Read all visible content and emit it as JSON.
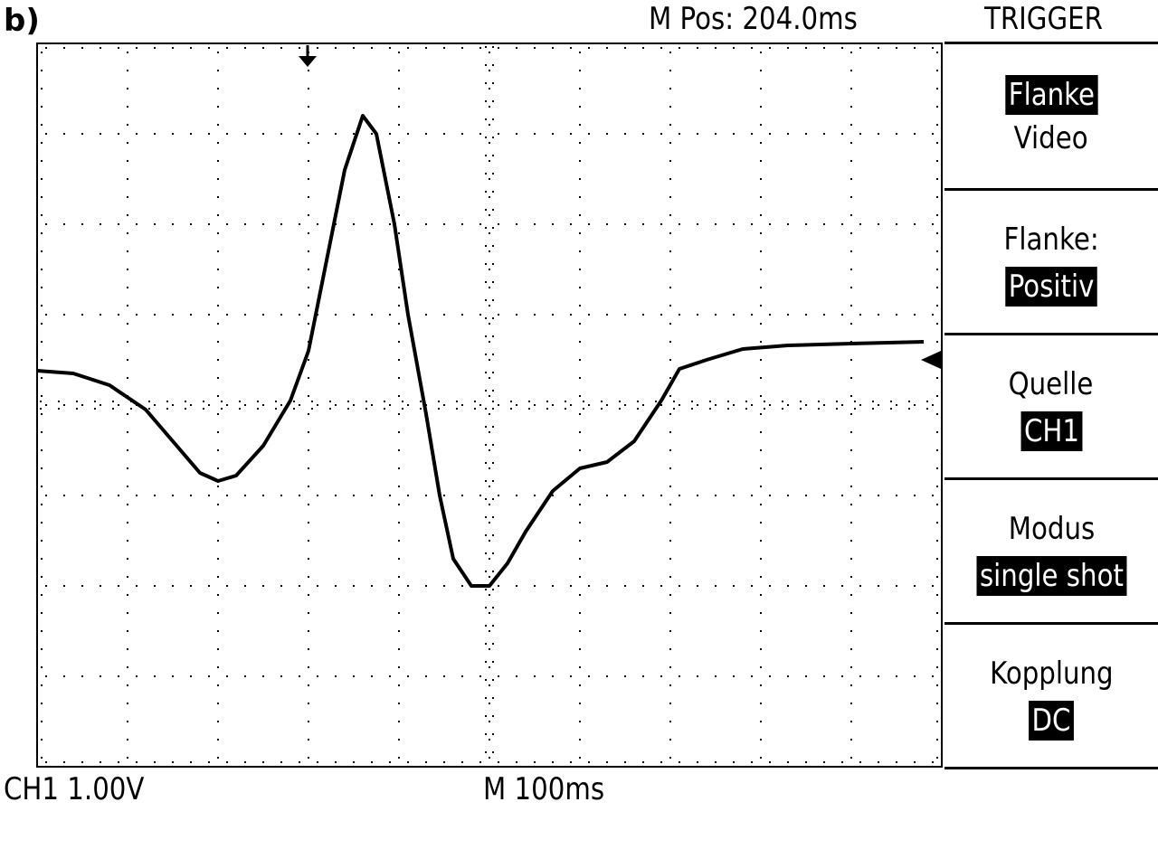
{
  "header": {
    "panel_label": "b)",
    "m_pos": "M Pos: 204.0ms",
    "menu_title": "TRIGGER"
  },
  "footer": {
    "ch1_scale": "CH1 1.00V",
    "timebase": "M 100ms"
  },
  "menu": [
    {
      "label": "Flanke",
      "value": "Video",
      "highlight": "label"
    },
    {
      "label": "Flanke:",
      "value": "Positiv",
      "highlight": "value"
    },
    {
      "label": "Quelle",
      "value": "CH1",
      "highlight": "value"
    },
    {
      "label": "Modus",
      "value": "single shot",
      "highlight": "value"
    },
    {
      "label": "Kopplung",
      "value": "DC",
      "highlight": "value"
    }
  ],
  "waveform": {
    "x_divisions": 10,
    "y_divisions": 8,
    "y_per_div": 1.0,
    "x_per_div": 100,
    "points": [
      [
        0.0,
        0.38
      ],
      [
        0.4,
        0.35
      ],
      [
        0.8,
        0.22
      ],
      [
        1.2,
        -0.05
      ],
      [
        1.5,
        -0.4
      ],
      [
        1.8,
        -0.75
      ],
      [
        2.0,
        -0.84
      ],
      [
        2.2,
        -0.78
      ],
      [
        2.5,
        -0.45
      ],
      [
        2.8,
        0.05
      ],
      [
        3.0,
        0.6
      ],
      [
        3.2,
        1.6
      ],
      [
        3.4,
        2.6
      ],
      [
        3.6,
        3.2
      ],
      [
        3.75,
        3.0
      ],
      [
        3.95,
        2.0
      ],
      [
        4.1,
        1.0
      ],
      [
        4.3,
        -0.1
      ],
      [
        4.45,
        -1.0
      ],
      [
        4.6,
        -1.7
      ],
      [
        4.8,
        -2.0
      ],
      [
        5.0,
        -2.0
      ],
      [
        5.2,
        -1.75
      ],
      [
        5.4,
        -1.4
      ],
      [
        5.7,
        -0.95
      ],
      [
        6.0,
        -0.7
      ],
      [
        6.3,
        -0.63
      ],
      [
        6.6,
        -0.4
      ],
      [
        6.9,
        0.05
      ],
      [
        7.1,
        0.4
      ],
      [
        7.4,
        0.5
      ],
      [
        7.8,
        0.62
      ],
      [
        8.3,
        0.66
      ],
      [
        9.0,
        0.68
      ],
      [
        9.8,
        0.7
      ]
    ]
  }
}
